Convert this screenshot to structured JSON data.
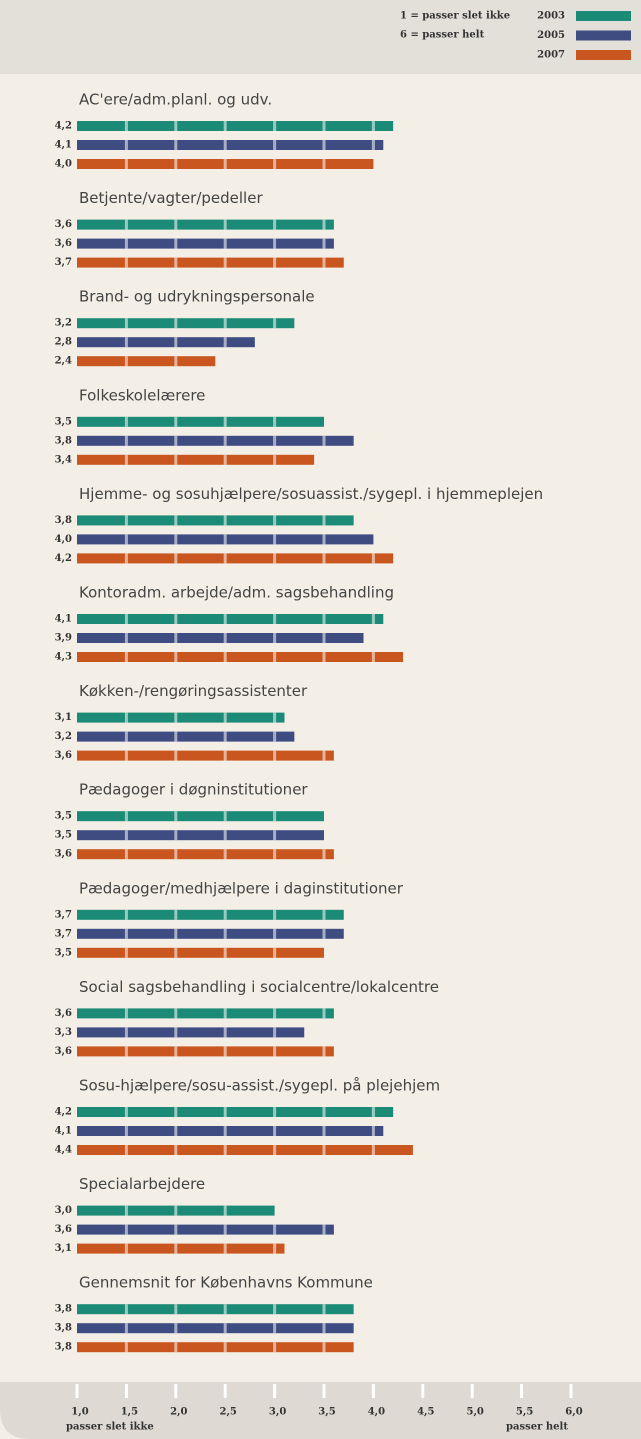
{
  "chart_data": {
    "type": "bar",
    "orientation": "horizontal",
    "legend_notes": [
      "1 = passer slet ikke",
      "6 = passer helt"
    ],
    "legend_position": "top-right",
    "x_axis_labels": [
      "passer slet ikke",
      "passer helt"
    ],
    "categories": [
      "AC'ere/adm.planl. og udv.",
      "Betjente/vagter/pedeller",
      "Brand- og udrykningspersonale",
      "Folkeskolelærere",
      "Hjemme- og sosuhjælpere/sosuassist./sygepl. i hjemmeplejen",
      "Kontoradm. arbejde/adm. sagsbehandling",
      "Køkken-/rengøringsassistenter",
      "Pædagoger i døgninstitutioner",
      "Pædagoger/medhjælpere i daginstitutioner",
      "Social sagsbehandling i socialcentre/lokalcentre",
      "Sosu-hjælpere/sosu-assist./sygepl. på plejehjem",
      "Specialarbejdere",
      "Gennemsnit for Københavns Kommune"
    ],
    "series": [
      {
        "name": "2003",
        "color": "#1b8a76",
        "values": [
          4.2,
          3.6,
          3.2,
          3.5,
          3.8,
          4.1,
          3.1,
          3.5,
          3.7,
          3.6,
          4.2,
          3.0,
          3.8
        ],
        "value_labels": [
          "4,2",
          "3,6",
          "3,2",
          "3,5",
          "3,8",
          "4,1",
          "3,1",
          "3,5",
          "3,7",
          "3,6",
          "4,2",
          "3,0",
          "3,8"
        ]
      },
      {
        "name": "2005",
        "color": "#3f4c82",
        "values": [
          4.1,
          3.6,
          2.8,
          3.8,
          4.0,
          3.9,
          3.2,
          3.5,
          3.7,
          3.3,
          4.1,
          3.6,
          3.8
        ],
        "value_labels": [
          "4,1",
          "3,6",
          "2,8",
          "3,8",
          "4,0",
          "3,9",
          "3,2",
          "3,5",
          "3,7",
          "3,3",
          "4,1",
          "3,6",
          "3,8"
        ]
      },
      {
        "name": "2007",
        "color": "#c9561f",
        "values": [
          4.0,
          3.7,
          2.4,
          3.4,
          4.2,
          4.3,
          3.6,
          3.6,
          3.5,
          3.6,
          4.4,
          3.1,
          3.8
        ],
        "value_labels": [
          "4,0",
          "3,7",
          "2,4",
          "3,4",
          "4,2",
          "4,3",
          "3,6",
          "3,6",
          "3,5",
          "3,6",
          "4,4",
          "3,1",
          "3,8"
        ]
      }
    ],
    "xlim": [
      1,
      6
    ],
    "xticks": [
      {
        "value": 1,
        "label": "1,0"
      },
      {
        "value": 1.5,
        "label": "1,5"
      },
      {
        "value": 2,
        "label": "2,0"
      },
      {
        "value": 2.5,
        "label": "2,5"
      },
      {
        "value": 3,
        "label": "3,0"
      },
      {
        "value": 3.5,
        "label": "3,5"
      },
      {
        "value": 4,
        "label": "4,0"
      },
      {
        "value": 4.5,
        "label": "4,5"
      },
      {
        "value": 5,
        "label": "5,0"
      },
      {
        "value": 5.5,
        "label": "5,5"
      },
      {
        "value": 6,
        "label": "6,0"
      }
    ],
    "grid": true
  }
}
